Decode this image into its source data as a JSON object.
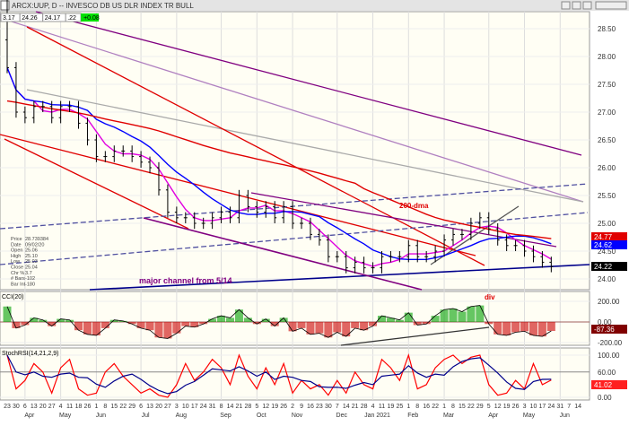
{
  "header": {
    "title": "ARCX:UUP, D -- INVESCO DB US DLR INDEX TR BULL",
    "quote": [
      "3.17",
      "24.26",
      "24.17",
      ".22"
    ],
    "change": "+0.08"
  },
  "databox": [
    [
      "Price",
      "28.739384"
    ],
    [
      "Date",
      "09/02/20"
    ],
    [
      "Open",
      "25.06"
    ],
    [
      "High",
      "25.10"
    ],
    [
      "Low",
      "25.03"
    ],
    [
      "Close",
      "25.04"
    ],
    [
      "Chr %",
      "3.7"
    ],
    [
      "# Bars",
      "-102"
    ],
    [
      "Bar Int",
      "-180"
    ]
  ],
  "annotations": {
    "dma": "200-dma",
    "channel": "major channel from 5/14",
    "div": "div"
  },
  "colors": {
    "ma200": "#e00000",
    "ma50": "#0000ff",
    "ma20": "#e000e0",
    "channel": "#800080",
    "cci_neg": "#cc0000",
    "cci_pos": "#00a000",
    "stoch": "#ff0000",
    "signal": "#00008b"
  },
  "chart_data": [
    {
      "type": "ohlc",
      "title": "ARCX:UUP, D -- INVESCO DB US DLR INDEX TR BULL",
      "ylim": [
        23.75,
        28.85
      ],
      "yticks": [
        "28.50",
        "28.00",
        "27.50",
        "27.00",
        "26.50",
        "26.00",
        "25.50",
        "25.00",
        "24.50",
        "24.00"
      ],
      "closes": [
        27.8,
        27.0,
        26.9,
        27.1,
        27.1,
        26.9,
        27.1,
        27.1,
        26.8,
        26.5,
        26.2,
        26.2,
        26.3,
        26.3,
        26.2,
        26.1,
        26.0,
        25.6,
        25.2,
        25.1,
        25.1,
        25.0,
        25.0,
        25.1,
        25.2,
        25.1,
        25.5,
        25.3,
        25.2,
        25.3,
        25.1,
        25.3,
        25.0,
        25.0,
        24.8,
        24.7,
        24.4,
        24.4,
        24.2,
        24.3,
        24.2,
        24.2,
        24.4,
        24.4,
        24.4,
        24.6,
        24.4,
        24.4,
        24.5,
        24.7,
        24.8,
        24.8,
        25.0,
        25.1,
        24.9,
        24.7,
        24.6,
        24.6,
        24.5,
        24.4,
        24.3,
        24.22
      ],
      "last_labels": {
        "ma200": "24.77",
        "ma50": "24.62",
        "close": "24.22"
      }
    },
    {
      "type": "bar",
      "title": "CCI(20)",
      "yticks": [
        "200.00",
        "0.00",
        "-200.00"
      ],
      "last": "-87.36",
      "values": [
        150,
        -60,
        -30,
        40,
        20,
        -40,
        30,
        20,
        -80,
        -120,
        -130,
        -60,
        20,
        10,
        -20,
        -60,
        -80,
        -150,
        -160,
        -110,
        -40,
        -50,
        -20,
        30,
        60,
        40,
        120,
        40,
        -20,
        30,
        -40,
        40,
        -90,
        -60,
        -120,
        -110,
        -150,
        -100,
        -140,
        -60,
        -80,
        -40,
        60,
        40,
        20,
        90,
        -30,
        -20,
        60,
        120,
        130,
        100,
        150,
        160,
        -20,
        -120,
        -130,
        -100,
        -90,
        -130,
        -140,
        -87
      ]
    },
    {
      "type": "line",
      "title": "StochRSI(14,21,2,9)",
      "yticks": [
        "100.00",
        "60.00",
        "0.00"
      ],
      "last": "41.02",
      "values": [
        100,
        20,
        40,
        80,
        60,
        10,
        70,
        90,
        20,
        5,
        10,
        60,
        80,
        50,
        30,
        10,
        20,
        5,
        0,
        30,
        80,
        40,
        60,
        90,
        70,
        30,
        100,
        50,
        20,
        70,
        30,
        80,
        10,
        40,
        20,
        30,
        5,
        40,
        10,
        60,
        30,
        20,
        90,
        70,
        40,
        100,
        20,
        30,
        70,
        90,
        100,
        80,
        95,
        100,
        30,
        5,
        10,
        40,
        20,
        80,
        30,
        41
      ]
    }
  ],
  "xaxis": {
    "weeks": [
      "23",
      "30",
      "6",
      "13",
      "20",
      "27",
      "4",
      "11",
      "18",
      "26",
      "1",
      "8",
      "15",
      "22",
      "29",
      "6",
      "13",
      "20",
      "27",
      "3",
      "10",
      "17",
      "24",
      "31",
      "8",
      "14",
      "21",
      "28",
      "5",
      "12",
      "19",
      "26",
      "2",
      "9",
      "16",
      "23",
      "30",
      "7",
      "14",
      "21",
      "28",
      "4",
      "11",
      "19",
      "25",
      "1",
      "8",
      "16",
      "22",
      "1",
      "8",
      "15",
      "22",
      "29",
      "5",
      "12",
      "19",
      "26",
      "3",
      "10",
      "17",
      "24",
      "31",
      "7",
      "14"
    ],
    "months": [
      [
        "Apr",
        2
      ],
      [
        "May",
        6
      ],
      [
        "Jun",
        10
      ],
      [
        "Jul",
        15
      ],
      [
        "Aug",
        19
      ],
      [
        "Sep",
        24
      ],
      [
        "Oct",
        28
      ],
      [
        "Nov",
        32
      ],
      [
        "Dec",
        37
      ],
      [
        "Jan 2021",
        41
      ],
      [
        "Feb",
        45
      ],
      [
        "Mar",
        49
      ],
      [
        "Apr",
        54
      ],
      [
        "May",
        58
      ],
      [
        "Jun",
        62
      ]
    ]
  }
}
